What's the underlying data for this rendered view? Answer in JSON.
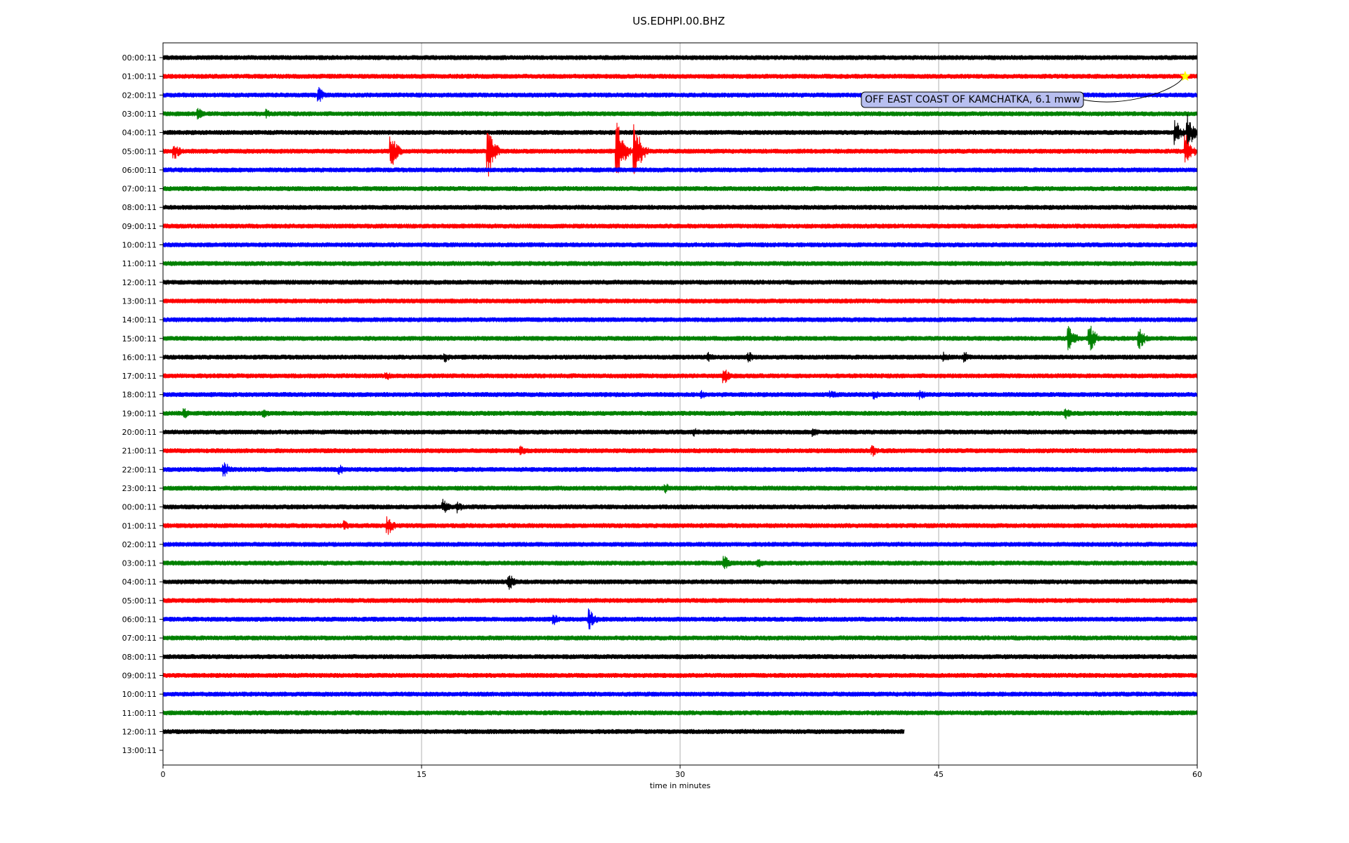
{
  "chart_data": {
    "type": "line",
    "title": "US.EDHPI.00.BHZ",
    "xlabel": "time in minutes",
    "ylabel": "",
    "xlim": [
      0,
      60
    ],
    "xticks": [
      "0",
      "15",
      "30",
      "45",
      "60"
    ],
    "grid": "vertical lines at 15, 30, 45",
    "row_colors": [
      "#000000",
      "#ff0000",
      "#0000ff",
      "#008000"
    ],
    "row_labels": [
      "00:00:11",
      "01:00:11",
      "02:00:11",
      "03:00:11",
      "04:00:11",
      "05:00:11",
      "06:00:11",
      "07:00:11",
      "08:00:11",
      "09:00:11",
      "10:00:11",
      "11:00:11",
      "12:00:11",
      "13:00:11",
      "14:00:11",
      "15:00:11",
      "16:00:11",
      "17:00:11",
      "18:00:11",
      "19:00:11",
      "20:00:11",
      "21:00:11",
      "22:00:11",
      "23:00:11",
      "00:00:11",
      "01:00:11",
      "02:00:11",
      "03:00:11",
      "04:00:11",
      "05:00:11",
      "06:00:11",
      "07:00:11",
      "08:00:11",
      "09:00:11",
      "10:00:11",
      "11:00:11",
      "12:00:11",
      "13:00:11"
    ],
    "last_trace_end_minute": 43,
    "events": [
      {
        "row": 2,
        "minute": 9,
        "amp": 0.45
      },
      {
        "row": 3,
        "minute": 2,
        "amp": 0.35
      },
      {
        "row": 3,
        "minute": 6,
        "amp": 0.3
      },
      {
        "row": 4,
        "minute": 58.7,
        "amp": 0.7
      },
      {
        "row": 4,
        "minute": 59.4,
        "amp": 1.0
      },
      {
        "row": 5,
        "minute": 0.6,
        "amp": 0.5
      },
      {
        "row": 5,
        "minute": 13.2,
        "amp": 0.9
      },
      {
        "row": 5,
        "minute": 18.8,
        "amp": 1.4
      },
      {
        "row": 5,
        "minute": 26.3,
        "amp": 1.6
      },
      {
        "row": 5,
        "minute": 27.3,
        "amp": 1.6
      },
      {
        "row": 5,
        "minute": 59.3,
        "amp": 0.9
      },
      {
        "row": 15,
        "minute": 52.5,
        "amp": 0.7
      },
      {
        "row": 15,
        "minute": 53.7,
        "amp": 0.8
      },
      {
        "row": 15,
        "minute": 56.6,
        "amp": 0.6
      },
      {
        "row": 16,
        "minute": 16.3,
        "amp": 0.3
      },
      {
        "row": 16,
        "minute": 31.6,
        "amp": 0.3
      },
      {
        "row": 16,
        "minute": 33.9,
        "amp": 0.35
      },
      {
        "row": 16,
        "minute": 45.3,
        "amp": 0.3
      },
      {
        "row": 16,
        "minute": 46.5,
        "amp": 0.35
      },
      {
        "row": 17,
        "minute": 12.9,
        "amp": 0.3
      },
      {
        "row": 17,
        "minute": 32.5,
        "amp": 0.45
      },
      {
        "row": 18,
        "minute": 31.2,
        "amp": 0.25
      },
      {
        "row": 18,
        "minute": 38.7,
        "amp": 0.3
      },
      {
        "row": 18,
        "minute": 41.2,
        "amp": 0.3
      },
      {
        "row": 18,
        "minute": 43.9,
        "amp": 0.3
      },
      {
        "row": 19,
        "minute": 1.2,
        "amp": 0.3
      },
      {
        "row": 19,
        "minute": 5.8,
        "amp": 0.3
      },
      {
        "row": 19,
        "minute": 52.3,
        "amp": 0.35
      },
      {
        "row": 20,
        "minute": 30.8,
        "amp": 0.25
      },
      {
        "row": 20,
        "minute": 37.7,
        "amp": 0.3
      },
      {
        "row": 21,
        "minute": 20.7,
        "amp": 0.3
      },
      {
        "row": 21,
        "minute": 41.1,
        "amp": 0.35
      },
      {
        "row": 22,
        "minute": 3.5,
        "amp": 0.45
      },
      {
        "row": 22,
        "minute": 10.2,
        "amp": 0.3
      },
      {
        "row": 23,
        "minute": 29.1,
        "amp": 0.3
      },
      {
        "row": 24,
        "minute": 16.2,
        "amp": 0.45
      },
      {
        "row": 24,
        "minute": 17.0,
        "amp": 0.35
      },
      {
        "row": 25,
        "minute": 10.5,
        "amp": 0.3
      },
      {
        "row": 25,
        "minute": 13.0,
        "amp": 0.55
      },
      {
        "row": 27,
        "minute": 32.5,
        "amp": 0.45
      },
      {
        "row": 27,
        "minute": 34.5,
        "amp": 0.3
      },
      {
        "row": 28,
        "minute": 20.0,
        "amp": 0.5
      },
      {
        "row": 30,
        "minute": 22.6,
        "amp": 0.35
      },
      {
        "row": 30,
        "minute": 24.7,
        "amp": 0.6
      }
    ],
    "annotation": {
      "text": "OFF EAST COAST OF KAMCHATKA, 6.1 mww",
      "row": 1,
      "minute": 59.3
    }
  }
}
